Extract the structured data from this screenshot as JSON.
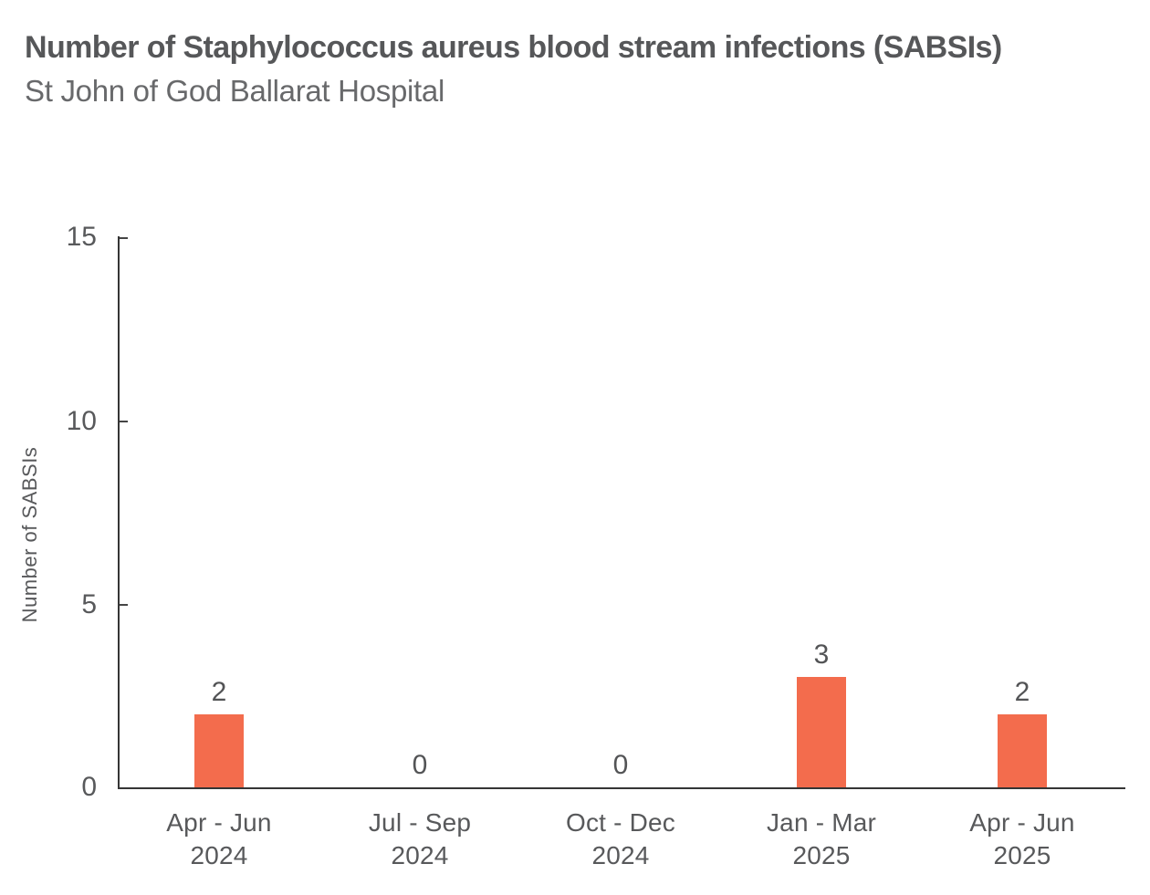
{
  "header": {
    "title": "Number of Staphylococcus aureus blood stream infections (SABSIs)",
    "subtitle": "St John of God Ballarat Hospital"
  },
  "chart_data": {
    "type": "bar",
    "title": "Number of Staphylococcus aureus blood stream infections (SABSIs)",
    "subtitle": "St John of God Ballarat Hospital",
    "ylabel": "Number of SABSIs",
    "xlabel": "",
    "categories": [
      {
        "line1": "Apr - Jun",
        "line2": "2024"
      },
      {
        "line1": "Jul - Sep",
        "line2": "2024"
      },
      {
        "line1": "Oct - Dec",
        "line2": "2024"
      },
      {
        "line1": "Jan - Mar",
        "line2": "2025"
      },
      {
        "line1": "Apr - Jun",
        "line2": "2025"
      }
    ],
    "values": [
      2,
      0,
      0,
      3,
      2
    ],
    "value_labels": [
      "2",
      "0",
      "0",
      "3",
      "2"
    ],
    "y_ticks": [
      "0",
      "5",
      "10",
      "15"
    ],
    "ylim": [
      0,
      15
    ],
    "bar_color": "#F36C4D",
    "text_color": "#58595B",
    "axis_color": "#353535",
    "grid": false,
    "legend": false
  }
}
